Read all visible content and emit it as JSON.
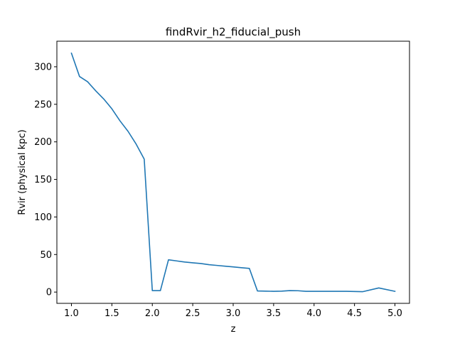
{
  "chart_data": {
    "type": "line",
    "title": "findRvir_h2_fiducial_push",
    "xlabel": "z",
    "ylabel": "Rvir (physical kpc)",
    "xlim": [
      0.82,
      5.18
    ],
    "ylim": [
      -15,
      334
    ],
    "xticks": [
      1.0,
      1.5,
      2.0,
      2.5,
      3.0,
      3.5,
      4.0,
      4.5,
      5.0
    ],
    "xtick_labels": [
      "1.0",
      "1.5",
      "2.0",
      "2.5",
      "3.0",
      "3.5",
      "4.0",
      "4.5",
      "5.0"
    ],
    "yticks": [
      0,
      50,
      100,
      150,
      200,
      250,
      300
    ],
    "ytick_labels": [
      "0",
      "50",
      "100",
      "150",
      "200",
      "250",
      "300"
    ],
    "grid": false,
    "legend": false,
    "series": [
      {
        "color": "#1f77b4",
        "x": [
          1.0,
          1.1,
          1.2,
          1.3,
          1.4,
          1.5,
          1.6,
          1.7,
          1.8,
          1.9,
          2.0,
          2.1,
          2.2,
          2.3,
          2.4,
          2.5,
          2.6,
          2.7,
          2.8,
          2.9,
          3.0,
          3.1,
          3.2,
          3.3,
          3.4,
          3.5,
          3.6,
          3.7,
          3.8,
          3.9,
          4.0,
          4.2,
          4.4,
          4.6,
          4.8,
          5.0
        ],
        "y": [
          318,
          287,
          280,
          268,
          257,
          244,
          228,
          214,
          197,
          177,
          2,
          2,
          43,
          41.5,
          40,
          39,
          38,
          36.5,
          35.5,
          34.5,
          33.5,
          32.5,
          31.5,
          1.5,
          1.3,
          1,
          1.3,
          2,
          1.8,
          1,
          1,
          1,
          1,
          0.5,
          5.5,
          1
        ]
      }
    ]
  }
}
